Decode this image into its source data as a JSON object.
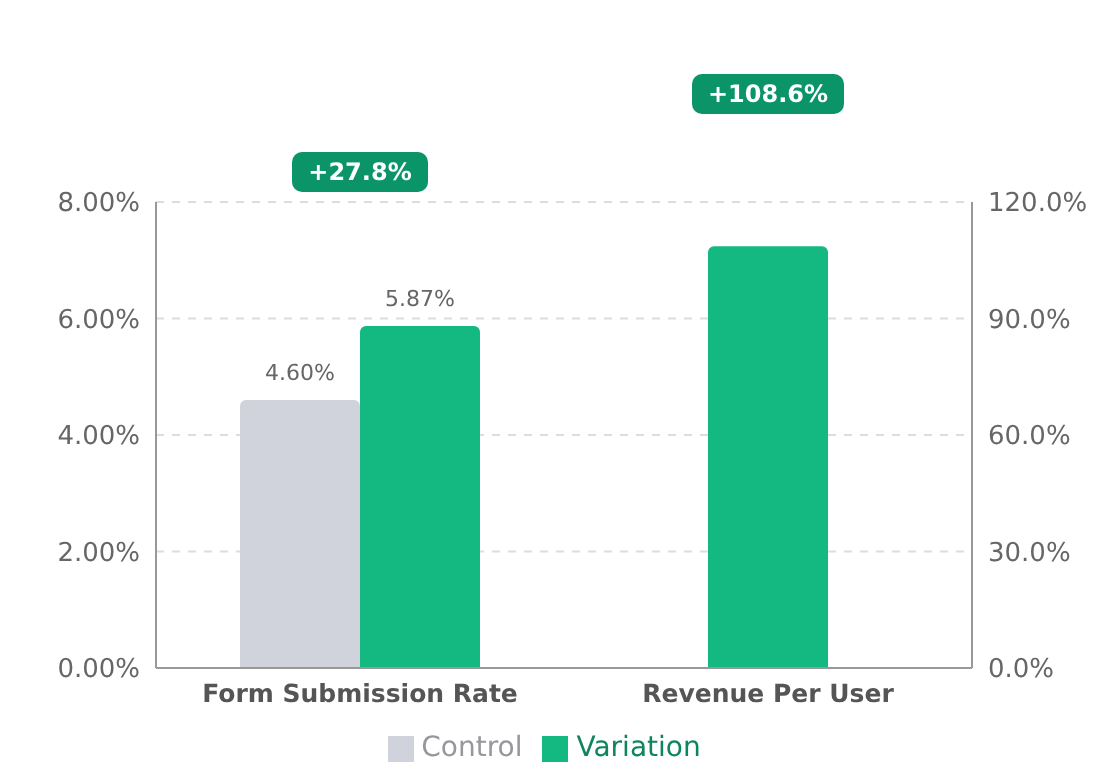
{
  "chart_data": {
    "type": "bar",
    "categories": [
      "Form Submission Rate",
      "Revenue Per User"
    ],
    "series": [
      {
        "name": "Control",
        "color": "#d0d3db",
        "values": [
          4.6,
          null
        ],
        "value_labels": [
          "4.60%",
          null
        ]
      },
      {
        "name": "Variation",
        "color": "#13b981",
        "values": [
          5.87,
          null
        ],
        "value_labels": [
          "5.87%",
          null
        ]
      },
      {
        "color": "#13b981",
        "values": [
          null,
          108.6
        ],
        "axis": "y2"
      }
    ],
    "ylim": [
      0,
      8
    ],
    "yticks": [
      {
        "value": 0,
        "label": "0.00%"
      },
      {
        "value": 2,
        "label": "2.00%"
      },
      {
        "value": 4,
        "label": "4.00%"
      },
      {
        "value": 6,
        "label": "6.00%"
      },
      {
        "value": 8,
        "label": "8.00%"
      }
    ],
    "y2lim": [
      0,
      120
    ],
    "y2ticks": [
      {
        "value": 0,
        "label": "0.0%"
      },
      {
        "value": 30,
        "label": "30.0%"
      },
      {
        "value": 60,
        "label": "60.0%"
      },
      {
        "value": 90,
        "label": "90.0%"
      },
      {
        "value": 120,
        "label": "120.0%"
      }
    ],
    "annotations": [
      "+27.8%",
      "+108.6%"
    ],
    "grid": "y",
    "legend": "bottom"
  }
}
